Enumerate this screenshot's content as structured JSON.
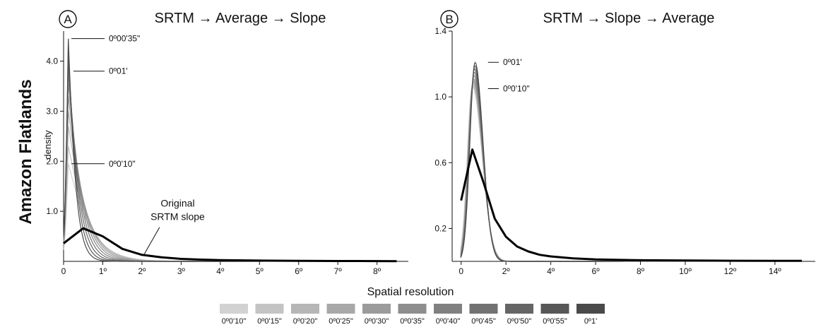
{
  "figure": {
    "row_label": "Amazon Flatlands",
    "legend_title": "Spatial resolution"
  },
  "legend": {
    "items": [
      {
        "label": "0º0'10\"",
        "color": "#d2d2d2"
      },
      {
        "label": "0º0'15\"",
        "color": "#c4c4c4"
      },
      {
        "label": "0º0'20\"",
        "color": "#b6b6b6"
      },
      {
        "label": "0º0'25\"",
        "color": "#a8a8a8"
      },
      {
        "label": "0º0'30\"",
        "color": "#9b9b9b"
      },
      {
        "label": "0º0'35\"",
        "color": "#8e8e8e"
      },
      {
        "label": "0º0'40\"",
        "color": "#808080"
      },
      {
        "label": "0º0'45\"",
        "color": "#727272"
      },
      {
        "label": "0º0'50\"",
        "color": "#656565"
      },
      {
        "label": "0º0'55\"",
        "color": "#575757"
      },
      {
        "label": "0º1'",
        "color": "#4a4a4a"
      }
    ]
  },
  "chart_data": [
    {
      "panel": "A",
      "type": "line",
      "title": "SRTM  → Average → Slope",
      "xlabel": "",
      "ylabel": "density",
      "xlim": [
        0,
        8.8
      ],
      "ylim": [
        0,
        4.6
      ],
      "x_ticks": [
        0,
        1,
        2,
        3,
        4,
        5,
        6,
        7,
        8
      ],
      "x_tick_labels": [
        "0",
        "1º",
        "2º",
        "3º",
        "4º",
        "5º",
        "6º",
        "7º",
        "8º"
      ],
      "y_ticks": [
        1.0,
        2.0,
        3.0,
        4.0
      ],
      "y_tick_labels": [
        "1.0",
        "2.0",
        "3.0",
        "4.0"
      ],
      "original_series": {
        "x": [
          0,
          0.5,
          1.0,
          1.5,
          2.0,
          2.5,
          3.0,
          3.5,
          4.0,
          5.0,
          6.0,
          7.0,
          8.0,
          8.5
        ],
        "y": [
          0.36,
          0.66,
          0.5,
          0.25,
          0.13,
          0.08,
          0.05,
          0.035,
          0.025,
          0.015,
          0.01,
          0.007,
          0.005,
          0.004
        ]
      },
      "resolution_peaks": [
        1.95,
        2.3,
        2.7,
        3.0,
        3.3,
        3.55,
        3.75,
        3.9,
        4.05,
        4.2,
        4.45
      ],
      "annotations": [
        {
          "text": "0º00'35\"",
          "x": 0.2,
          "y": 4.45
        },
        {
          "text": "0º01'",
          "x": 0.25,
          "y": 3.8
        },
        {
          "text": "0º0'10\"",
          "x": 0.2,
          "y": 1.95
        },
        {
          "text": "Original",
          "x": 2.1,
          "y": 1.15
        },
        {
          "text": "SRTM slope",
          "x": 2.1,
          "y": 0.88
        }
      ]
    },
    {
      "panel": "B",
      "type": "line",
      "title": "SRTM  → Slope → Average",
      "xlabel": "",
      "ylabel": "",
      "xlim": [
        -0.4,
        15.8
      ],
      "ylim": [
        0,
        1.4
      ],
      "x_ticks": [
        0,
        2,
        4,
        6,
        8,
        10,
        12,
        14
      ],
      "x_tick_labels": [
        "0",
        "2º",
        "4º",
        "6º",
        "8º",
        "10º",
        "12º",
        "14º"
      ],
      "y_ticks": [
        0.2,
        0.6,
        1.0,
        1.4
      ],
      "y_tick_labels": [
        "0.2",
        "0.6",
        "1.0",
        "1.4"
      ],
      "original_series": {
        "x": [
          0,
          0.5,
          1.0,
          1.5,
          2.0,
          2.5,
          3.0,
          3.5,
          4.0,
          5.0,
          6.0,
          8.0,
          10.0,
          12.0,
          14.0,
          15.2
        ],
        "y": [
          0.37,
          0.68,
          0.48,
          0.26,
          0.15,
          0.09,
          0.06,
          0.04,
          0.03,
          0.018,
          0.012,
          0.007,
          0.005,
          0.004,
          0.003,
          0.003
        ]
      },
      "resolution_peaks": [
        1.06,
        1.07,
        1.08,
        1.09,
        1.1,
        1.11,
        1.13,
        1.15,
        1.17,
        1.19,
        1.21
      ],
      "annotations": [
        {
          "text": "0º01'",
          "x": 1.2,
          "y": 1.21
        },
        {
          "text": "0º0'10\"",
          "x": 1.2,
          "y": 1.05
        }
      ]
    }
  ]
}
